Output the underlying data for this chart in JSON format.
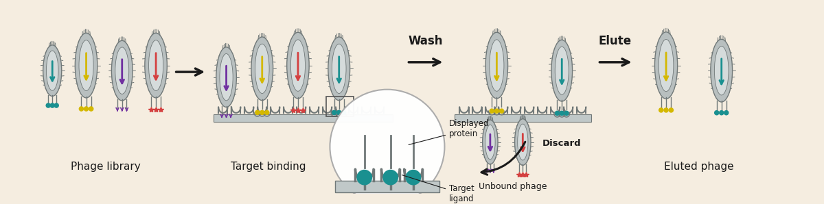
{
  "bg_color": "#f5ede0",
  "phage_body": "#b8bfbf",
  "phage_inner": "#d5dbdb",
  "phage_outline": "#707878",
  "surface_color": "#c0c8c8",
  "teal": "#1a9090",
  "yellow": "#d4b800",
  "red": "#d44040",
  "purple": "#7030a0",
  "text_color": "#1a1a1a",
  "zoom_bg": "#ffffff",
  "zoom_border": "#aaaaaa",
  "labels": {
    "phage_library": "Phage library",
    "target_binding": "Target binding",
    "wash": "Wash",
    "displayed_protein": "Displayed\nprotein",
    "target_ligand": "Target\nligand",
    "unbound_phage": "Unbound phage",
    "discard": "Discard",
    "elute": "Elute",
    "eluted_phage": "Eluted phage"
  }
}
